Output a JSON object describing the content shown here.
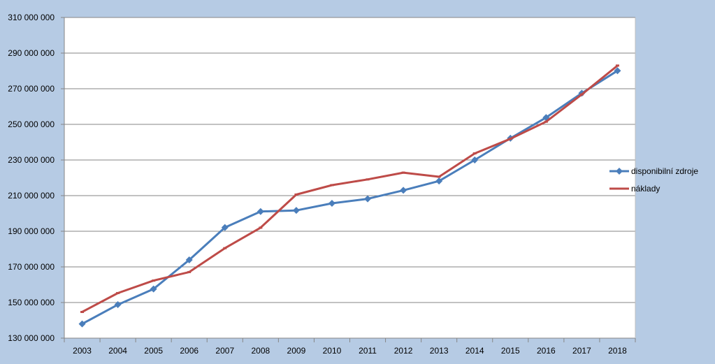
{
  "chart_data": {
    "type": "line",
    "title": "",
    "xlabel": "",
    "ylabel": "",
    "categories": [
      "2003",
      "2004",
      "2005",
      "2006",
      "2007",
      "2008",
      "2009",
      "2010",
      "2011",
      "2012",
      "2013",
      "2014",
      "2015",
      "2016",
      "2017",
      "2018"
    ],
    "ylim": [
      130000000,
      310000000
    ],
    "ytick_step": 20000000,
    "ytick_labels": [
      "130 000 000",
      "150 000 000",
      "170 000 000",
      "190 000 000",
      "210 000 000",
      "230 000 000",
      "250 000 000",
      "270 000 000",
      "290 000 000",
      "310 000 000"
    ],
    "grid": true,
    "legend_position": "right",
    "series": [
      {
        "name": "disponibilní zdroje",
        "color": "#4a7ebb",
        "marker": "diamond",
        "values": [
          138000000,
          148800000,
          157600000,
          173900000,
          192100000,
          201100000,
          201700000,
          205700000,
          208200000,
          213000000,
          218200000,
          230000000,
          242200000,
          253800000,
          267500000,
          280100000
        ]
      },
      {
        "name": "náklady",
        "color": "#be4b48",
        "marker": "dash",
        "values": [
          144700000,
          155300000,
          162300000,
          167100000,
          180500000,
          192000000,
          210600000,
          215900000,
          219100000,
          222900000,
          220600000,
          233700000,
          241900000,
          251500000,
          266800000,
          283000000
        ]
      }
    ]
  }
}
